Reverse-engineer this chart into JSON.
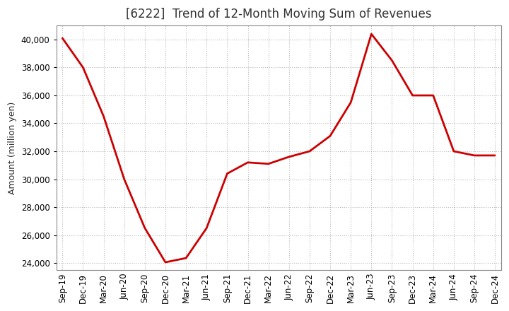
{
  "title": "[6222]  Trend of 12-Month Moving Sum of Revenues",
  "ylabel": "Amount (million yen)",
  "line_color": "#cc0000",
  "background_color": "#ffffff",
  "plot_bg_color": "#ffffff",
  "grid_color": "#bbbbbb",
  "ylim": [
    23500,
    41000
  ],
  "yticks": [
    24000,
    26000,
    28000,
    30000,
    32000,
    34000,
    36000,
    38000,
    40000
  ],
  "labels": [
    "Sep-19",
    "Dec-19",
    "Mar-20",
    "Jun-20",
    "Sep-20",
    "Dec-20",
    "Mar-21",
    "Jun-21",
    "Sep-21",
    "Dec-21",
    "Mar-22",
    "Jun-22",
    "Sep-22",
    "Dec-22",
    "Mar-23",
    "Jun-23",
    "Sep-23",
    "Dec-23",
    "Mar-24",
    "Jun-24",
    "Sep-24",
    "Dec-24"
  ],
  "values": [
    40100,
    38000,
    34500,
    30000,
    26500,
    24050,
    24350,
    26500,
    30400,
    31200,
    31100,
    31600,
    32000,
    33100,
    35500,
    40400,
    38500,
    36000,
    36000,
    32000,
    31700,
    31700
  ],
  "title_color": "#333333",
  "title_fontsize": 12,
  "ylabel_fontsize": 9,
  "tick_fontsize": 8.5,
  "line_width": 2.0
}
